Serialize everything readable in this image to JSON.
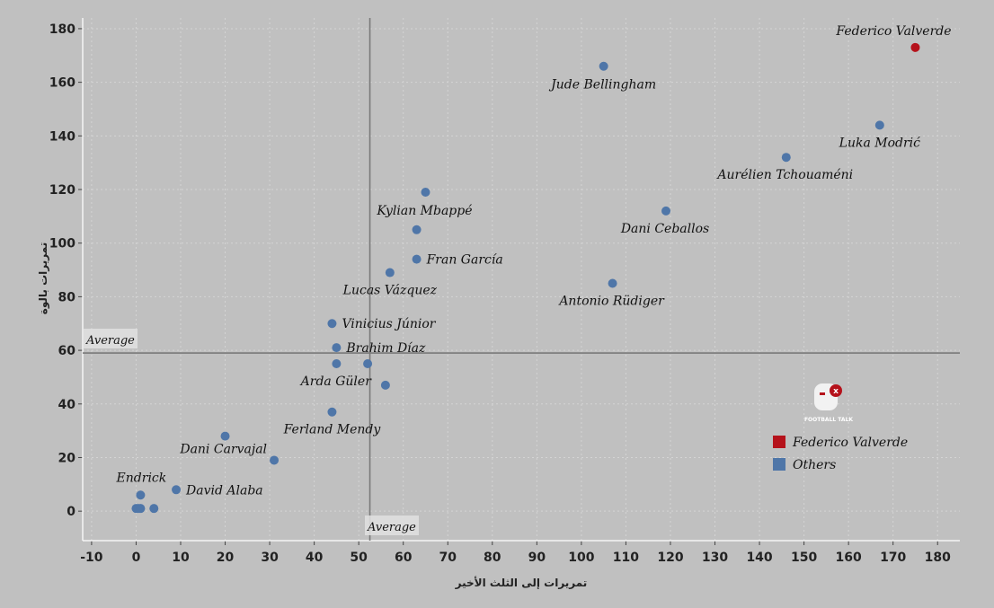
{
  "chart_data": {
    "type": "scatter",
    "title": "",
    "xlabel": "تمريرات إلى الثلث الأخير",
    "ylabel": "تمريرات بالوة",
    "xlim": [
      -12,
      185
    ],
    "ylim": [
      -11,
      184
    ],
    "xticks": [
      -10,
      0,
      10,
      20,
      30,
      40,
      50,
      60,
      70,
      80,
      90,
      100,
      110,
      120,
      130,
      140,
      150,
      160,
      170,
      180
    ],
    "yticks": [
      0,
      20,
      40,
      60,
      80,
      100,
      120,
      140,
      160,
      180
    ],
    "grid": true,
    "legend_position": "bottom-right",
    "average": {
      "x": 52.5,
      "y": 59,
      "label": "Average"
    },
    "series": [
      {
        "name": "Federico Valverde",
        "color": "#b5121b",
        "points": [
          {
            "x": 175,
            "y": 173,
            "label": "Federico Valverde"
          }
        ]
      },
      {
        "name": "Others",
        "color": "#4f76a8",
        "points": [
          {
            "x": 105,
            "y": 166,
            "label": "Jude Bellingham"
          },
          {
            "x": 167,
            "y": 144,
            "label": "Luka Modrić"
          },
          {
            "x": 146,
            "y": 132,
            "label": "Aurélien Tchouaméni"
          },
          {
            "x": 65,
            "y": 119,
            "label": "Kylian Mbappé"
          },
          {
            "x": 119,
            "y": 112,
            "label": "Dani Ceballos"
          },
          {
            "x": 63,
            "y": 105,
            "label": ""
          },
          {
            "x": 63,
            "y": 94,
            "label": "Fran García"
          },
          {
            "x": 57,
            "y": 89,
            "label": "Lucas Vázquez"
          },
          {
            "x": 107,
            "y": 85,
            "label": "Antonio Rüdiger"
          },
          {
            "x": 44,
            "y": 70,
            "label": "Vinicius Júnior"
          },
          {
            "x": 45,
            "y": 61,
            "label": "Brahim Díaz"
          },
          {
            "x": 45,
            "y": 55,
            "label": ""
          },
          {
            "x": 52,
            "y": 55,
            "label": ""
          },
          {
            "x": 56,
            "y": 47,
            "label": "Arda Güler"
          },
          {
            "x": 44,
            "y": 37,
            "label": "Ferland Mendy"
          },
          {
            "x": 20,
            "y": 28,
            "label": ""
          },
          {
            "x": 31,
            "y": 19,
            "label": "Dani Carvajal"
          },
          {
            "x": 9,
            "y": 8,
            "label": "David Alaba"
          },
          {
            "x": 1,
            "y": 6,
            "label": "Endrick"
          },
          {
            "x": 0,
            "y": 1,
            "label": ""
          },
          {
            "x": 0.5,
            "y": 1,
            "label": ""
          },
          {
            "x": 1,
            "y": 1,
            "label": ""
          },
          {
            "x": 4,
            "y": 1,
            "label": ""
          }
        ]
      }
    ],
    "legend": [
      {
        "label": "Federico Valverde",
        "color": "#b5121b"
      },
      {
        "label": "Others",
        "color": "#4f76a8"
      }
    ]
  },
  "logo": {
    "name": "football-talk-logo",
    "text": "FOOTBALL TALK"
  }
}
